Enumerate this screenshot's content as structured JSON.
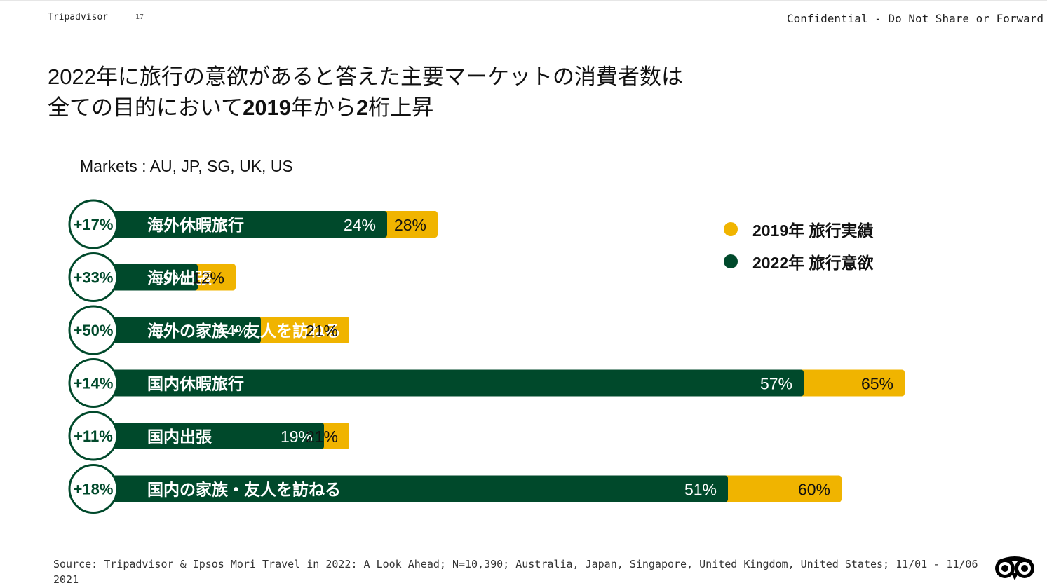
{
  "header": {
    "brand": "Tripadvisor",
    "page_number": "17",
    "confidential": "Confidential - Do Not Share or Forward"
  },
  "title": {
    "line1": "2022年に旅行の意欲があると答えた主要マーケットの消費者数は",
    "line2_part1": "全ての目的において",
    "line2_bold1": "2019",
    "line2_part2": "年から",
    "line2_bold2": "2",
    "line2_part3": "桁上昇"
  },
  "markets_label": "Markets : AU, JP, SG, UK, US",
  "legend": [
    {
      "label": "2019年 旅行実績",
      "color": "#f0b400"
    },
    {
      "label": "2022年 旅行意欲",
      "color": "#00492b"
    }
  ],
  "colors": {
    "green": "#00492b",
    "gold": "#f0b400"
  },
  "chart_data": {
    "type": "bar",
    "orientation": "horizontal",
    "categories": [
      "海外休暇旅行",
      "海外出張",
      "海外の家族・友人を訪ねる",
      "国内休暇旅行",
      "国内出張",
      "国内の家族・友人を訪ねる"
    ],
    "series": [
      {
        "name": "2019年 旅行実績",
        "values": [
          24,
          9,
          14,
          57,
          19,
          51
        ],
        "labels": [
          "24%",
          "9%",
          "14%",
          "57%",
          "19%",
          "51%"
        ]
      },
      {
        "name": "2022年 旅行意欲",
        "values": [
          28,
          12,
          21,
          65,
          21,
          60
        ],
        "labels": [
          "28%",
          "12%",
          "21%",
          "65%",
          "21%",
          "60%"
        ]
      }
    ],
    "growth_labels": [
      "+17%",
      "+33%",
      "+50%",
      "+14%",
      "+11%",
      "+18%"
    ],
    "legend_position": "top-right",
    "grid": false
  },
  "footer": {
    "source": "Source: Tripadvisor & Ipsos Mori Travel in 2022: A Look Ahead; N=10,390; Australia, Japan, Singapore, United Kingdom, United States; 11/01 - 11/06 2021"
  },
  "logo_icon": "tripadvisor-owl-icon"
}
